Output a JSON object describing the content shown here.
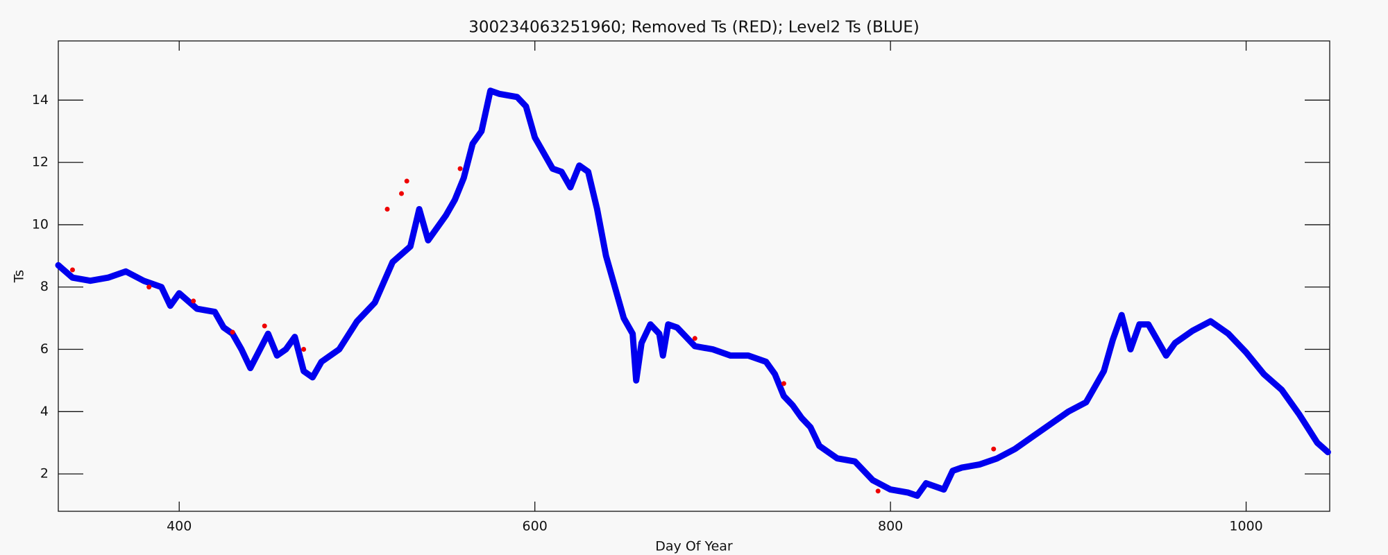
{
  "chart_data": {
    "type": "line",
    "title": "300234063251960; Removed Ts (RED); Level2 Ts (BLUE)",
    "x_label": "Day Of Year",
    "y_label": "Ts",
    "xlim": [
      332,
      1047
    ],
    "ylim": [
      0.8,
      15.9
    ],
    "xticks": [
      400,
      600,
      800,
      1000
    ],
    "yticks": [
      2,
      4,
      6,
      8,
      10,
      12,
      14
    ],
    "series": [
      {
        "name": "Level2 Ts",
        "color": "#0000ee",
        "style": "line",
        "x": [
          332,
          340,
          350,
          360,
          370,
          380,
          390,
          395,
          400,
          410,
          420,
          425,
          430,
          435,
          440,
          450,
          455,
          460,
          465,
          470,
          475,
          480,
          490,
          500,
          510,
          520,
          530,
          535,
          540,
          550,
          555,
          560,
          565,
          570,
          575,
          580,
          590,
          595,
          600,
          610,
          615,
          620,
          625,
          630,
          635,
          640,
          645,
          650,
          655,
          657,
          660,
          665,
          670,
          672,
          675,
          680,
          690,
          700,
          710,
          720,
          730,
          735,
          740,
          745,
          750,
          755,
          760,
          770,
          780,
          790,
          800,
          810,
          815,
          820,
          830,
          835,
          840,
          850,
          860,
          870,
          880,
          890,
          900,
          910,
          920,
          925,
          930,
          935,
          940,
          945,
          950,
          955,
          960,
          970,
          980,
          990,
          1000,
          1010,
          1020,
          1030,
          1040,
          1046
        ],
        "values": [
          8.7,
          8.3,
          8.2,
          8.3,
          8.5,
          8.2,
          8.0,
          7.4,
          7.8,
          7.3,
          7.2,
          6.7,
          6.5,
          6.0,
          5.4,
          6.5,
          5.8,
          6.0,
          6.4,
          5.3,
          5.1,
          5.6,
          6.0,
          6.9,
          7.5,
          8.8,
          9.3,
          10.5,
          9.5,
          10.3,
          10.8,
          11.5,
          12.6,
          13.0,
          14.3,
          14.2,
          14.1,
          13.8,
          12.8,
          11.8,
          11.7,
          11.2,
          11.9,
          11.7,
          10.5,
          9.0,
          8.0,
          7.0,
          6.5,
          5.0,
          6.2,
          6.8,
          6.5,
          5.8,
          6.8,
          6.7,
          6.1,
          6.0,
          5.8,
          5.8,
          5.6,
          5.2,
          4.5,
          4.2,
          3.8,
          3.5,
          2.9,
          2.5,
          2.4,
          1.8,
          1.5,
          1.4,
          1.3,
          1.7,
          1.5,
          2.1,
          2.2,
          2.3,
          2.5,
          2.8,
          3.2,
          3.6,
          4.0,
          4.3,
          5.3,
          6.3,
          7.1,
          6.0,
          6.8,
          6.8,
          6.3,
          5.8,
          6.2,
          6.6,
          6.9,
          6.5,
          5.9,
          5.2,
          4.7,
          3.9,
          3.0,
          2.7
        ]
      },
      {
        "name": "Removed Ts",
        "color": "#ee0000",
        "style": "points",
        "x": [
          340,
          383,
          408,
          430,
          448,
          470,
          517,
          525,
          528,
          558,
          690,
          740,
          793,
          858
        ],
        "values": [
          8.55,
          8.0,
          7.55,
          6.55,
          6.75,
          6.0,
          10.5,
          11.0,
          11.4,
          11.8,
          6.35,
          4.9,
          1.45,
          2.8
        ]
      }
    ]
  }
}
